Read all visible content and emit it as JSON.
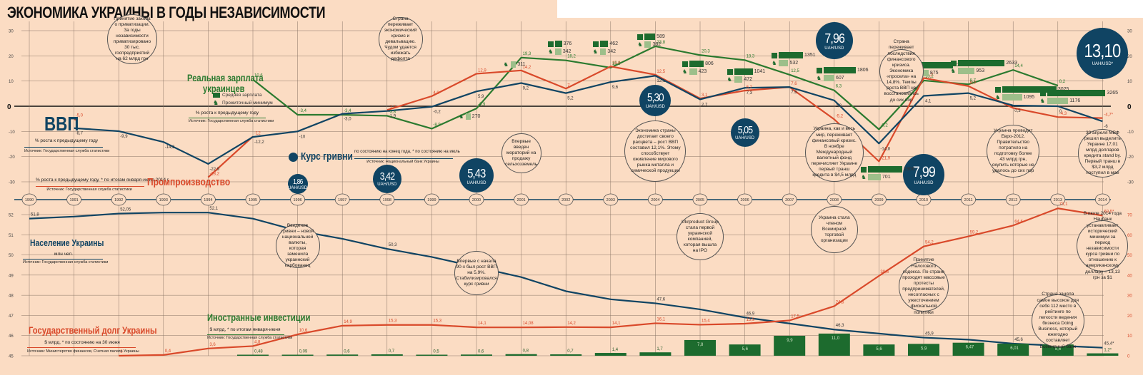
{
  "title": "ЭКОНОМИКА УКРАИНЫ В ГОДЫ НЕЗАВИСИМОСТИ",
  "chart_data": [
    {
      "type": "line",
      "title": "Макроэкономика (% роста к предыдущему году)",
      "x": [
        1990,
        1991,
        1992,
        1993,
        1994,
        1995,
        1996,
        1997,
        1998,
        1999,
        2000,
        2001,
        2002,
        2003,
        2004,
        2005,
        2006,
        2007,
        2008,
        2009,
        2010,
        2011,
        2012,
        2013,
        2014
      ],
      "ylim": [
        -30,
        30
      ],
      "yticks": [
        "30",
        "20",
        "10",
        "0",
        "-10",
        "-20",
        "-30"
      ],
      "series": [
        {
          "name": "ВВП",
          "color": "#104463",
          "values": [
            null,
            -8.7,
            -9.9,
            -14.2,
            -22.9,
            -12.2,
            -10,
            -3,
            -1.9,
            -0.2,
            5.9,
            9.2,
            5.2,
            9.6,
            12.1,
            2.7,
            7.3,
            7.6,
            2.3,
            -14.8,
            4.1,
            5.2,
            0.3,
            0,
            -6
          ],
          "labels": [
            "",
            "-8,7",
            "-9,9",
            "-14,2",
            "-22,9",
            "-12,2",
            "-10",
            "-3,0",
            "-1,9",
            "-0,2",
            "5,9",
            "9,2",
            "5,2",
            "9,6",
            "12,1",
            "2,7",
            "7,3",
            "7,6",
            "2,3",
            "-14,8",
            "4,1",
            "5,2",
            "0,3",
            "0",
            "-6"
          ]
        },
        {
          "name": "Промпроизводство",
          "color": "#d9492a",
          "values": [
            null,
            -5.0,
            null,
            null,
            -28.2,
            -12,
            null,
            null,
            -1.5,
            4.0,
            12.9,
            14.2,
            7,
            15.8,
            12.5,
            3.1,
            6.2,
            7.6,
            -5.2,
            -21.9,
            11.2,
            8.0,
            -0.7,
            -4.3,
            -4.7
          ],
          "labels": [
            "",
            "-5,0",
            "",
            "",
            "-28,2",
            "-12",
            "",
            "",
            "-1,5",
            "4,0",
            "12,9",
            "14,2",
            "7",
            "15,8",
            "12,5",
            "3,1",
            "6,2",
            "7,6",
            "-5,2",
            "-21,9",
            "11,2",
            "8,0",
            "",
            "-4,3",
            "-4,7*"
          ]
        },
        {
          "name": "Реальная зарплата украинцев",
          "color": "#2b7a2f",
          "values": [
            null,
            null,
            null,
            null,
            null,
            10.6,
            -3.4,
            -3.4,
            -3.8,
            -8.9,
            -0.9,
            19.3,
            18.2,
            15.3,
            23.8,
            20.3,
            18.3,
            12.5,
            6.3,
            -9.2,
            10.2,
            8.7,
            14.4,
            8.2,
            null
          ],
          "labels": [
            "",
            "",
            "",
            "",
            "",
            "10,6",
            "-3,4",
            "-3,4",
            "-3,8",
            "-8,9",
            "-0,9",
            "19,3",
            "18,2",
            "15,3",
            "23,8",
            "20,3",
            "18,3",
            "12,5",
            "6,3",
            "-9,2",
            "10,2",
            "8,7",
            "14,4",
            "8,2",
            ""
          ]
        }
      ],
      "wages_uah": [
        {
          "year": 2000,
          "avg": null,
          "min": 270
        },
        {
          "year": 2001,
          "avg": null,
          "min": 311
        },
        {
          "year": 2002,
          "avg": 376,
          "min": 342
        },
        {
          "year": 2003,
          "avg": 462,
          "min": 342
        },
        {
          "year": 2004,
          "avg": 589,
          "min": 362
        },
        {
          "year": 2005,
          "avg": 806,
          "min": 423
        },
        {
          "year": 2006,
          "avg": 1041,
          "min": 472
        },
        {
          "year": 2007,
          "avg": 1351,
          "min": 532
        },
        {
          "year": 2008,
          "avg": 1806,
          "min": 607
        },
        {
          "year": 2009,
          "avg": 1906,
          "min": 701
        },
        {
          "year": 2010,
          "avg": 2239,
          "min": 875
        },
        {
          "year": 2011,
          "avg": 2633,
          "min": 953
        },
        {
          "year": 2012,
          "avg": 3025,
          "min": 1095
        },
        {
          "year": 2013,
          "avg": 3265,
          "min": 1176
        }
      ],
      "exchange_rate_uah_usd": [
        {
          "year": 1996,
          "label": "1,86"
        },
        {
          "year": 1998,
          "label": "3,42"
        },
        {
          "year": 2000,
          "label": "5,43"
        },
        {
          "year": 2004,
          "label": "5,30"
        },
        {
          "year": 2006,
          "label": "5,05"
        },
        {
          "year": 2008,
          "label": "7,96"
        },
        {
          "year": 2010,
          "label": "7,99"
        },
        {
          "year": 2014,
          "label": "13,10"
        }
      ]
    },
    {
      "type": "line",
      "title": "Население Украины (млн чел.)",
      "x": [
        1990,
        1991,
        1992,
        1993,
        1994,
        1995,
        1996,
        1997,
        1998,
        1999,
        2000,
        2001,
        2002,
        2003,
        2004,
        2005,
        2006,
        2007,
        2008,
        2009,
        2010,
        2011,
        2012,
        2013,
        2014
      ],
      "ylim": [
        45,
        52
      ],
      "yticks": [
        "52",
        "51",
        "50",
        "49",
        "48",
        "47",
        "46",
        "45"
      ],
      "series": [
        {
          "name": "Население Украины",
          "color": "#104463",
          "values": [
            51.8,
            51.9,
            52.05,
            52.1,
            52.1,
            51.8,
            51.2,
            50.8,
            50.3,
            49.9,
            49.4,
            48.9,
            48.2,
            47.8,
            47.6,
            47.3,
            46.9,
            46.6,
            46.3,
            46.1,
            45.9,
            45.8,
            45.6,
            45.5,
            45.4
          ],
          "labels": [
            "51,8",
            "",
            "52,05",
            "",
            "52,1",
            "",
            "51,2",
            "",
            "50,3",
            "",
            "49,4",
            "",
            "",
            "",
            "47,6",
            "",
            "46,9",
            "",
            "46,3",
            "",
            "45,9",
            "",
            "45,6",
            "",
            "45,4*"
          ]
        }
      ]
    },
    {
      "type": "line",
      "title": "Государственный долг Украины ($ млрд)",
      "x": [
        1992,
        1993,
        1994,
        1995,
        1996,
        1997,
        1998,
        1999,
        2000,
        2001,
        2002,
        2003,
        2004,
        2005,
        2006,
        2007,
        2008,
        2009,
        2010,
        2011,
        2012,
        2013,
        2014
      ],
      "ylim": [
        0,
        70
      ],
      "yticks": [
        "70",
        "60",
        "50",
        "40",
        "30",
        "20",
        "10",
        "0"
      ],
      "series": [
        {
          "name": "Госдолг",
          "color": "#d9492a",
          "values": [
            0,
            0.4,
            3.6,
            4.8,
            10.6,
            14.9,
            15.3,
            15.3,
            14.1,
            14.08,
            14.2,
            14.1,
            16.1,
            15.4,
            15.9,
            17.5,
            24.6,
            39.6,
            54.2,
            59.2,
            64.6,
            73.1,
            69.5
          ],
          "labels": [
            "0",
            "0,4",
            "3,6",
            "4,8",
            "10,6",
            "14,9",
            "15,3",
            "15,3",
            "14,1",
            "14,08",
            "14,2",
            "14,1",
            "16,1",
            "15,4",
            "15,9",
            "17,5",
            "24,6",
            "39,6",
            "54,2",
            "59,2",
            "64,6",
            "73,1",
            "69,5*"
          ]
        }
      ]
    },
    {
      "type": "bar",
      "title": "Иностранные инвестиции ($ млрд)",
      "categories": [
        1995,
        1996,
        1997,
        1998,
        1999,
        2000,
        2001,
        2002,
        2003,
        2004,
        2005,
        2006,
        2007,
        2008,
        2009,
        2010,
        2011,
        2012,
        2013,
        2014
      ],
      "values": [
        0.48,
        0.09,
        0.6,
        0.7,
        0.5,
        0.6,
        0.8,
        0.7,
        1.4,
        1.7,
        7.8,
        5.6,
        9.9,
        11.0,
        5.6,
        5.9,
        6.47,
        6.01,
        5.6,
        1.2
      ],
      "labels": [
        "0,48",
        "0,09",
        "0,6",
        "0,7",
        "0,5",
        "0,6",
        "0,8",
        "0,7",
        "1,4",
        "1,7",
        "7,8",
        "5,6",
        "9,9",
        "11,0",
        "5,6",
        "5,9",
        "6,47",
        "6,01",
        "5,6",
        "1,2*"
      ]
    }
  ],
  "legends": {
    "gdp": {
      "title": "ВВП",
      "subtitle": "% роста к предыдущему году",
      "source": "Источник: Государственная служба статистики"
    },
    "industry": {
      "title": "Промпроизводство",
      "subtitle": "% роста к предыдущему году, * по итогам января-июня 2014 г.",
      "source": "Источник: Государственная служба статистики"
    },
    "wages": {
      "title_line1": "Реальная зарплата",
      "title_line2": "украинцев",
      "avg_label": "Средняя зарплата",
      "min_label": "Прожиточный минимум",
      "subtitle": "% роста к предыдущему году",
      "source": "Источник: Государственная служба статистики"
    },
    "currency": {
      "title": "Курс гривни",
      "subtitle": "по состоянию на конец года, * по состоянию на июль",
      "source": "Источник: Национальный банк Украины",
      "unit": "UAH/USD",
      "unit_last": "UAH/USD*"
    },
    "population": {
      "title": "Население Украины",
      "subtitle": "млн чел.",
      "source": "Источник: Государственная служба статистики"
    },
    "debt": {
      "title": "Государственный долг Украины",
      "subtitle": "$ млрд, * по состоянию на 30 июня",
      "source": "Источник: Министерство финансов, Счетная палата Украины"
    },
    "investment": {
      "title": "Иностранные инвестиции",
      "subtitle": "$ млрд, * по итогам января-июня",
      "source": "Источник: Государственная служба статистики"
    }
  },
  "notes": [
    "Принятие закона о приватизации. За годы независимости приватизировано 30 тыс. госпредприятий на 62 млрд грн",
    "Страна переживает экономический кризис и девальвацию. Чудом удается избежать дефолта",
    "Впервые введен мораторий на продажу сельхозземель",
    "Экономика страны достигает своего расцвета – рост ВВП составил 12,1%. Этому способствует оживление мирового рынка металла и химической продукции",
    "Украина, как и весь мир, переживает финансовый кризис. В ноябре Международный валютный фонд перечисляет Украине первый транш кредита в $4,5 млрд",
    "Страна переживает последствия финансового кризиса. Экономика «просела» на 14,8%. Темпы роста ВВП не восстановились до сих пор",
    "Украина проводит Евро-2012. Правительство потратило на подготовку более 43 млрд грн, окупить которые не удалось до сих пор",
    "30 апреля МВФ решил выделить Украине 17,01 млрд долларов кредита stand by. Первый транш в $3,2 млрд поступил в мае",
    "Введение гривни – новой национальной валюты, которая заменила украинский карбованец",
    "Впервые с начала 90-х был рост ВВП на 5,9%. Стабилизировался курс гривни",
    "Ukrproduct Group стала первой украинской компанией, которая вышла на IPO",
    "Украина стала членом Всемирной торговой организации",
    "Принятие Налогового кодекса. По стране проходят массовые протесты предпринимателей, несогласных с ужесточением фискальной политики",
    "В июле 2014 года Нацбанк устанавливает исторический минимум за период независимости курса гривни по отношению к американскому доллару – 13,13 грн за $1",
    "Страна заняла самое высокое для себя 112 место в рейтинге по легкости ведения бизнеса Doing Business, который ежегодно составляет Всемирный банк"
  ],
  "colors": {
    "background": "#fbdcc3",
    "gdp": "#104463",
    "industry": "#d9492a",
    "wages": "#2b7a2f",
    "bars": "#1d6b2e",
    "grid": "#8a7566"
  }
}
